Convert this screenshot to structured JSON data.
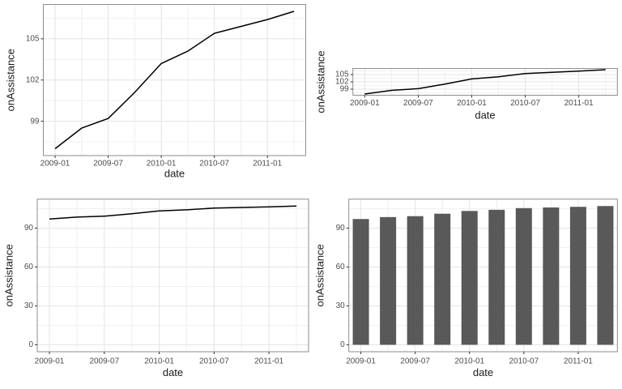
{
  "figure": {
    "background": "#ffffff",
    "panel_background": "#ffffff",
    "panel_border_color": "#8e8e8e",
    "grid_major_color": "#e4e4e4",
    "grid_minor_color": "#f1f1f1",
    "axis_text_color": "#4d4d4d",
    "axis_title_color": "#1a1a1a",
    "tick_mark_color": "#333333",
    "line_color": "#000000",
    "bar_color": "#595959"
  },
  "chart_data": [
    {
      "name": "line-full-scale",
      "type": "line",
      "xlabel": "date",
      "ylabel": "onAssistance",
      "x": [
        "2009-01",
        "2009-04",
        "2009-07",
        "2009-10",
        "2010-01",
        "2010-04",
        "2010-07",
        "2010-10",
        "2011-01",
        "2011-04"
      ],
      "values": [
        97.0,
        98.5,
        99.2,
        101.1,
        103.2,
        104.1,
        105.4,
        105.9,
        106.4,
        107.0
      ],
      "xticks": [
        "2009-01",
        "2009-07",
        "2010-01",
        "2010-07",
        "2011-01"
      ],
      "yticks": [
        99,
        102,
        105
      ],
      "yticks_minor": [
        97.5,
        100.5,
        103.5,
        106.5
      ],
      "ylim": [
        96.5,
        107.5
      ],
      "grid": true,
      "legend": "none"
    },
    {
      "name": "line-compressed",
      "type": "line",
      "xlabel": "date",
      "ylabel": "onAssistance",
      "x": [
        "2009-01",
        "2009-04",
        "2009-07",
        "2009-10",
        "2010-01",
        "2010-04",
        "2010-07",
        "2010-10",
        "2011-01",
        "2011-04"
      ],
      "values": [
        97.0,
        98.5,
        99.2,
        101.1,
        103.2,
        104.1,
        105.4,
        105.9,
        106.4,
        107.0
      ],
      "xticks": [
        "2009-01",
        "2009-07",
        "2010-01",
        "2010-07",
        "2011-01"
      ],
      "yticks": [
        99,
        102,
        105
      ],
      "yticks_minor": [
        97.5,
        100.5,
        103.5,
        106.5
      ],
      "ylim": [
        96.5,
        107.5
      ],
      "grid": true,
      "legend": "none"
    },
    {
      "name": "line-zero-based",
      "type": "line",
      "xlabel": "date",
      "ylabel": "onAssistance",
      "x": [
        "2009-01",
        "2009-04",
        "2009-07",
        "2009-10",
        "2010-01",
        "2010-04",
        "2010-07",
        "2010-10",
        "2011-01",
        "2011-04"
      ],
      "values": [
        97.0,
        98.5,
        99.2,
        101.1,
        103.2,
        104.1,
        105.4,
        105.9,
        106.4,
        107.0
      ],
      "xticks": [
        "2009-01",
        "2009-07",
        "2010-01",
        "2010-07",
        "2011-01"
      ],
      "yticks": [
        0,
        30,
        60,
        90
      ],
      "yticks_minor": [
        15,
        45,
        75,
        105
      ],
      "ylim": [
        -5.35,
        112.35
      ],
      "grid": true,
      "legend": "none"
    },
    {
      "name": "bar-zero-based",
      "type": "bar",
      "xlabel": "date",
      "ylabel": "onAssistance",
      "x": [
        "2009-01",
        "2009-04",
        "2009-07",
        "2009-10",
        "2010-01",
        "2010-04",
        "2010-07",
        "2010-10",
        "2011-01",
        "2011-04"
      ],
      "values": [
        97.0,
        98.5,
        99.2,
        101.1,
        103.2,
        104.1,
        105.4,
        105.9,
        106.4,
        107.0
      ],
      "xticks": [
        "2009-01",
        "2009-07",
        "2010-01",
        "2010-07",
        "2011-01"
      ],
      "yticks": [
        0,
        30,
        60,
        90
      ],
      "yticks_minor": [
        15,
        45,
        75,
        105
      ],
      "ylim": [
        -5.35,
        112.35
      ],
      "grid": true,
      "legend": "none"
    }
  ]
}
